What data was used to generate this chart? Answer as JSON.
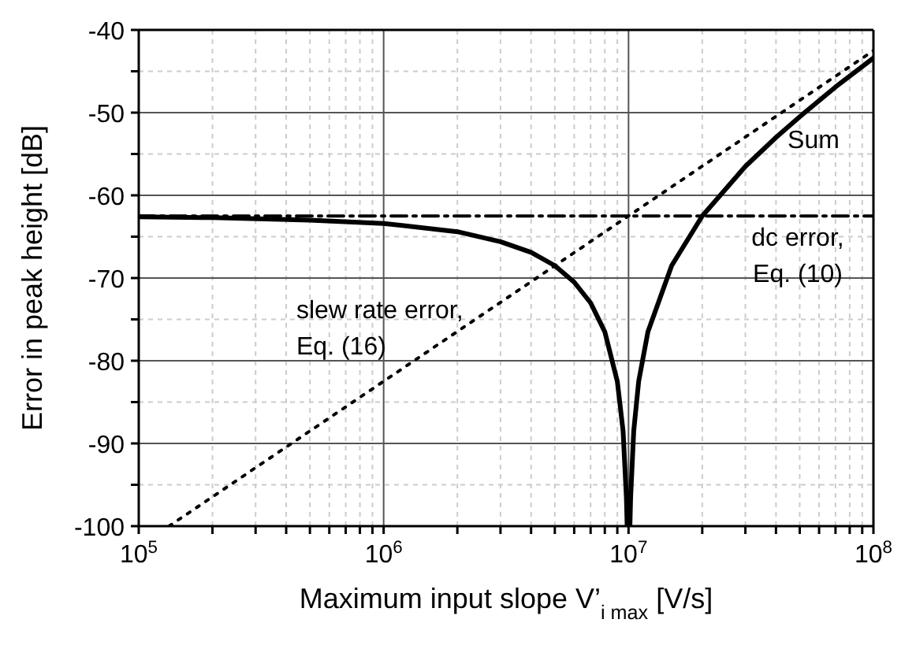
{
  "chart_data": {
    "type": "line",
    "xlabel": "Maximum input slope V’$_{i max}$ [V/s]",
    "ylabel": "Error in peak height [dB]",
    "log": "x",
    "grid": true,
    "marker": "none",
    "legend": false,
    "xlim": [
      100000,
      100000000
    ],
    "ylim": [
      -100,
      -40
    ],
    "xticks": [
      {
        "value": 100000,
        "label": "10$^{5}$"
      },
      {
        "value": 200000,
        "label": null
      },
      {
        "value": 300000,
        "label": null
      },
      {
        "value": 400000,
        "label": null
      },
      {
        "value": 500000,
        "label": null
      },
      {
        "value": 600000,
        "label": null
      },
      {
        "value": 700000,
        "label": null
      },
      {
        "value": 800000,
        "label": null
      },
      {
        "value": 900000,
        "label": null
      },
      {
        "value": 1000000,
        "label": "10$^{6}$"
      },
      {
        "value": 2000000,
        "label": null
      },
      {
        "value": 3000000,
        "label": null
      },
      {
        "value": 4000000,
        "label": null
      },
      {
        "value": 5000000,
        "label": null
      },
      {
        "value": 6000000,
        "label": null
      },
      {
        "value": 7000000,
        "label": null
      },
      {
        "value": 8000000,
        "label": null
      },
      {
        "value": 9000000,
        "label": null
      },
      {
        "value": 10000000,
        "label": "10$^{7}$"
      },
      {
        "value": 20000000,
        "label": null
      },
      {
        "value": 30000000,
        "label": null
      },
      {
        "value": 40000000,
        "label": null
      },
      {
        "value": 50000000,
        "label": null
      },
      {
        "value": 60000000,
        "label": null
      },
      {
        "value": 70000000,
        "label": null
      },
      {
        "value": 80000000,
        "label": null
      },
      {
        "value": 90000000,
        "label": null
      },
      {
        "value": 100000000,
        "label": "10$^{8}$"
      }
    ],
    "yticks": [
      -100,
      {
        "value": -95,
        "label": null
      },
      -90,
      {
        "value": -85,
        "label": null
      },
      -80,
      {
        "value": -75,
        "label": null
      },
      -70,
      {
        "value": -65,
        "label": null
      },
      -60,
      {
        "value": -55,
        "label": null
      },
      -50,
      {
        "value": -45,
        "label": null
      },
      -40
    ],
    "series": [
      {
        "color": "#000000",
        "line_style": "solid",
        "x": [
          100000,
          200000,
          500000,
          1000000,
          2000000,
          3000000,
          4000000,
          5000000,
          6000000,
          7000000,
          8000000,
          9000000,
          9500000,
          9800000,
          9870000,
          10000000,
          10130000,
          10200000,
          10500000,
          11000000,
          12000000,
          15000000,
          20000000,
          30000000,
          40000000,
          50000000,
          70000000,
          100000000
        ],
        "values": [
          -62.6,
          -62.7,
          -63,
          -63.4,
          -64.4,
          -65.6,
          -66.9,
          -68.5,
          -70.5,
          -73,
          -76.5,
          -82.5,
          -88.5,
          -96.5,
          -100,
          -100,
          -100,
          -96.5,
          -88.5,
          -82.5,
          -76.5,
          -68.5,
          -62.5,
          -56.5,
          -53,
          -50.5,
          -46.9,
          -43.4
        ]
      },
      {
        "color": "#000000",
        "line_style": "dashed",
        "x": [
          100000,
          100000000
        ],
        "values": [
          -62.5,
          -62.5
        ]
      },
      {
        "color": "#000000",
        "line_style": "dotted",
        "x": [
          133000,
          100000000
        ],
        "values": [
          -100,
          -42.5
        ]
      }
    ],
    "annotations": [
      "Sum",
      "dc error,\nEq. (10)",
      "slew rate error,\nEq. (16)"
    ]
  }
}
